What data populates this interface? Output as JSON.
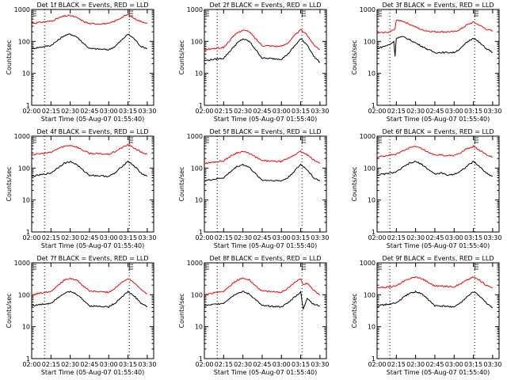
{
  "figure": {
    "xlabel": "Start Time (05-Aug-07 01:55:40)",
    "ylabel": "Counts/sec",
    "xticks": [
      "02:00",
      "02:15",
      "02:30",
      "02:45",
      "03:00",
      "03:15",
      "03:30"
    ],
    "yticks": [
      "1",
      "10",
      "100",
      "1000"
    ],
    "colors": {
      "events": "#000000",
      "lld": "#ff0000",
      "axes": "#000000",
      "background": "#ffffff"
    }
  },
  "chart_data": [
    {
      "type": "line",
      "title": "Det 1f BLACK = Events, RED = LLD",
      "panel": 1,
      "x_time_ticks": [
        "02:00",
        "02:15",
        "02:30",
        "02:45",
        "03:00",
        "03:15",
        "03:30"
      ],
      "ylog": true,
      "ylim": [
        1,
        1000
      ],
      "series": [
        {
          "role": "LLD",
          "color": "#ff0000",
          "x": [
            "02:00",
            "02:15",
            "02:20",
            "02:25",
            "02:30",
            "02:35",
            "02:40",
            "02:45",
            "03:00",
            "03:05",
            "03:10",
            "03:15",
            "03:20",
            "03:25",
            "03:30"
          ],
          "values": [
            370,
            430,
            520,
            620,
            650,
            560,
            430,
            360,
            360,
            440,
            560,
            700,
            520,
            420,
            380
          ]
        },
        {
          "role": "Events",
          "color": "#000000",
          "x": [
            "02:00",
            "02:15",
            "02:20",
            "02:25",
            "02:30",
            "02:35",
            "02:40",
            "02:45",
            "03:00",
            "03:05",
            "03:10",
            "03:15",
            "03:20",
            "03:25",
            "03:30"
          ],
          "values": [
            60,
            75,
            105,
            150,
            170,
            140,
            90,
            60,
            55,
            70,
            110,
            170,
            120,
            70,
            60
          ]
        }
      ],
      "markers": [
        "02:10",
        "03:16"
      ]
    },
    {
      "type": "line",
      "title": "Det 2f BLACK = Events, RED = LLD",
      "panel": 2,
      "x_time_ticks": [
        "02:00",
        "02:15",
        "02:30",
        "02:45",
        "03:00",
        "03:15",
        "03:30"
      ],
      "ylog": true,
      "ylim": [
        1,
        1000
      ],
      "series": [
        {
          "role": "LLD",
          "color": "#ff0000",
          "x": [
            "02:00",
            "02:15",
            "02:20",
            "02:25",
            "02:30",
            "02:35",
            "02:40",
            "02:45",
            "03:00",
            "03:05",
            "03:10",
            "03:15",
            "03:20",
            "03:25",
            "03:30"
          ],
          "values": [
            55,
            65,
            110,
            180,
            230,
            200,
            120,
            75,
            70,
            90,
            150,
            230,
            160,
            80,
            55
          ]
        },
        {
          "role": "Events",
          "color": "#000000",
          "x": [
            "02:00",
            "02:15",
            "02:20",
            "02:25",
            "02:30",
            "02:35",
            "02:40",
            "02:45",
            "03:00",
            "03:05",
            "03:10",
            "03:15",
            "03:20",
            "03:25",
            "03:30"
          ],
          "values": [
            25,
            30,
            50,
            85,
            120,
            100,
            55,
            30,
            28,
            40,
            70,
            120,
            80,
            35,
            22
          ]
        }
      ],
      "markers": [
        "02:10",
        "03:16"
      ]
    },
    {
      "type": "line",
      "title": "Det 3f BLACK = Events, RED = LLD",
      "panel": 3,
      "x_time_ticks": [
        "02:00",
        "02:15",
        "02:30",
        "02:45",
        "03:00",
        "03:15",
        "03:30"
      ],
      "ylog": true,
      "ylim": [
        1,
        1000
      ],
      "series": [
        {
          "role": "LLD",
          "color": "#ff0000",
          "x": [
            "02:00",
            "02:10",
            "02:14",
            "02:15",
            "02:20",
            "02:25",
            "02:30",
            "02:35",
            "02:40",
            "02:45",
            "03:00",
            "03:05",
            "03:10",
            "03:15",
            "03:20",
            "03:25",
            "03:30"
          ],
          "values": [
            180,
            200,
            240,
            480,
            430,
            350,
            280,
            230,
            210,
            200,
            200,
            240,
            330,
            400,
            320,
            240,
            210
          ]
        },
        {
          "role": "Events",
          "color": "#000000",
          "x": [
            "02:00",
            "02:10",
            "02:13",
            "02:14",
            "02:15",
            "02:20",
            "02:25",
            "02:30",
            "02:35",
            "02:40",
            "02:45",
            "03:00",
            "03:05",
            "03:10",
            "03:15",
            "03:20",
            "03:25",
            "03:30"
          ],
          "values": [
            60,
            80,
            100,
            35,
            130,
            140,
            115,
            90,
            70,
            55,
            45,
            45,
            60,
            95,
            130,
            90,
            60,
            45
          ]
        }
      ],
      "markers": [
        "02:10",
        "03:16"
      ]
    },
    {
      "type": "line",
      "title": "Det 4f BLACK = Events, RED = LLD",
      "panel": 4,
      "x_time_ticks": [
        "02:00",
        "02:15",
        "02:30",
        "02:45",
        "03:00",
        "03:15",
        "03:30"
      ],
      "ylog": true,
      "ylim": [
        1,
        1000
      ],
      "series": [
        {
          "role": "LLD",
          "color": "#ff0000",
          "x": [
            "02:00",
            "02:15",
            "02:20",
            "02:25",
            "02:30",
            "02:35",
            "02:40",
            "02:45",
            "03:00",
            "03:05",
            "03:10",
            "03:15",
            "03:20",
            "03:25",
            "03:30"
          ],
          "values": [
            260,
            310,
            400,
            480,
            520,
            460,
            360,
            290,
            270,
            330,
            430,
            540,
            420,
            320,
            270
          ]
        },
        {
          "role": "Events",
          "color": "#000000",
          "x": [
            "02:00",
            "02:15",
            "02:20",
            "02:25",
            "02:30",
            "02:35",
            "02:40",
            "02:45",
            "03:00",
            "03:05",
            "03:10",
            "03:15",
            "03:20",
            "03:25",
            "03:30"
          ],
          "values": [
            55,
            70,
            100,
            140,
            160,
            130,
            85,
            60,
            55,
            70,
            110,
            165,
            115,
            70,
            55
          ]
        }
      ],
      "markers": [
        "02:10",
        "03:16"
      ]
    },
    {
      "type": "line",
      "title": "Det 5f BLACK = Events, RED = LLD",
      "panel": 5,
      "x_time_ticks": [
        "02:00",
        "02:15",
        "02:30",
        "02:45",
        "03:00",
        "03:15",
        "03:30"
      ],
      "ylog": true,
      "ylim": [
        1,
        1000
      ],
      "series": [
        {
          "role": "LLD",
          "color": "#ff0000",
          "x": [
            "02:00",
            "02:15",
            "02:20",
            "02:25",
            "02:30",
            "02:35",
            "02:40",
            "02:45",
            "03:00",
            "03:05",
            "03:10",
            "03:15",
            "03:20",
            "03:25",
            "03:30"
          ],
          "values": [
            140,
            170,
            230,
            300,
            330,
            290,
            220,
            170,
            160,
            200,
            260,
            330,
            260,
            180,
            140
          ]
        },
        {
          "role": "Events",
          "color": "#000000",
          "x": [
            "02:00",
            "02:15",
            "02:20",
            "02:25",
            "02:30",
            "02:35",
            "02:40",
            "02:45",
            "03:00",
            "03:05",
            "03:10",
            "03:15",
            "03:20",
            "03:25",
            "03:30"
          ],
          "values": [
            40,
            50,
            75,
            110,
            130,
            105,
            65,
            42,
            40,
            50,
            80,
            130,
            90,
            50,
            40
          ]
        }
      ],
      "markers": [
        "02:10",
        "03:16"
      ]
    },
    {
      "type": "line",
      "title": "Det 6f BLACK = Events, RED = LLD",
      "panel": 6,
      "x_time_ticks": [
        "02:00",
        "02:15",
        "02:30",
        "02:45",
        "03:00",
        "03:15",
        "03:30"
      ],
      "ylog": true,
      "ylim": [
        1,
        1000
      ],
      "series": [
        {
          "role": "LLD",
          "color": "#ff0000",
          "x": [
            "02:00",
            "02:15",
            "02:20",
            "02:25",
            "02:30",
            "02:35",
            "02:40",
            "02:45",
            "02:50",
            "02:55",
            "03:00",
            "03:05",
            "03:10",
            "03:15",
            "03:20",
            "03:25",
            "03:30"
          ],
          "values": [
            220,
            270,
            350,
            430,
            470,
            400,
            300,
            250,
            260,
            240,
            250,
            300,
            400,
            480,
            360,
            260,
            220
          ]
        },
        {
          "role": "Events",
          "color": "#000000",
          "x": [
            "02:00",
            "02:15",
            "02:20",
            "02:25",
            "02:30",
            "02:35",
            "02:40",
            "02:45",
            "02:50",
            "02:55",
            "03:00",
            "03:05",
            "03:10",
            "03:15",
            "03:20",
            "03:25",
            "03:30"
          ],
          "values": [
            60,
            75,
            105,
            140,
            160,
            130,
            90,
            65,
            70,
            60,
            65,
            80,
            115,
            160,
            110,
            70,
            55
          ]
        }
      ],
      "markers": [
        "02:10",
        "03:16"
      ]
    },
    {
      "type": "line",
      "title": "Det 7f BLACK = Events, RED = LLD",
      "panel": 7,
      "x_time_ticks": [
        "02:00",
        "02:15",
        "02:30",
        "02:45",
        "03:00",
        "03:15",
        "03:30"
      ],
      "ylog": true,
      "ylim": [
        1,
        1000
      ],
      "series": [
        {
          "role": "LLD",
          "color": "#ff0000",
          "x": [
            "02:00",
            "02:15",
            "02:20",
            "02:25",
            "02:30",
            "02:35",
            "02:40",
            "02:45",
            "03:00",
            "03:05",
            "03:10",
            "03:15",
            "03:20",
            "03:25",
            "03:30"
          ],
          "values": [
            100,
            130,
            190,
            280,
            330,
            290,
            190,
            130,
            120,
            160,
            240,
            330,
            240,
            150,
            105
          ]
        },
        {
          "role": "Events",
          "color": "#000000",
          "x": [
            "02:00",
            "02:15",
            "02:20",
            "02:25",
            "02:30",
            "02:35",
            "02:40",
            "02:45",
            "03:00",
            "03:05",
            "03:10",
            "03:15",
            "03:20",
            "03:25",
            "03:30"
          ],
          "values": [
            45,
            55,
            80,
            110,
            125,
            105,
            70,
            45,
            42,
            55,
            85,
            125,
            90,
            55,
            42
          ]
        }
      ],
      "markers": [
        "02:10",
        "03:16"
      ]
    },
    {
      "type": "line",
      "title": "Det 8f BLACK = Events, RED = LLD",
      "panel": 8,
      "x_time_ticks": [
        "02:00",
        "02:15",
        "02:30",
        "02:45",
        "03:00",
        "03:15",
        "03:30"
      ],
      "ylog": true,
      "ylim": [
        1,
        1000
      ],
      "series": [
        {
          "role": "LLD",
          "color": "#ff0000",
          "x": [
            "02:00",
            "02:15",
            "02:20",
            "02:25",
            "02:30",
            "02:35",
            "02:40",
            "02:45",
            "03:00",
            "03:05",
            "03:10",
            "03:15",
            "03:17",
            "03:20",
            "03:25",
            "03:30"
          ],
          "values": [
            100,
            130,
            190,
            280,
            330,
            290,
            190,
            130,
            120,
            160,
            240,
            320,
            210,
            230,
            140,
            100
          ]
        },
        {
          "role": "Events",
          "color": "#000000",
          "x": [
            "02:00",
            "02:15",
            "02:20",
            "02:25",
            "02:30",
            "02:35",
            "02:40",
            "02:45",
            "03:00",
            "03:05",
            "03:10",
            "03:15",
            "03:17",
            "03:20",
            "03:25",
            "03:30"
          ],
          "values": [
            45,
            55,
            80,
            110,
            125,
            105,
            70,
            45,
            42,
            55,
            85,
            120,
            35,
            80,
            50,
            45
          ]
        }
      ],
      "markers": [
        "02:10",
        "03:16"
      ]
    },
    {
      "type": "line",
      "title": "Det 9f BLACK = Events, RED = LLD",
      "panel": 9,
      "x_time_ticks": [
        "02:00",
        "02:15",
        "02:30",
        "02:45",
        "03:00",
        "03:15",
        "03:30"
      ],
      "ylog": true,
      "ylim": [
        1,
        1000
      ],
      "series": [
        {
          "role": "LLD",
          "color": "#ff0000",
          "x": [
            "02:00",
            "02:15",
            "02:20",
            "02:25",
            "02:30",
            "02:35",
            "02:40",
            "02:45",
            "03:00",
            "03:05",
            "03:10",
            "03:15",
            "03:20",
            "03:25",
            "03:30"
          ],
          "values": [
            160,
            190,
            250,
            320,
            360,
            320,
            240,
            190,
            180,
            220,
            290,
            360,
            280,
            200,
            170
          ]
        },
        {
          "role": "Events",
          "color": "#000000",
          "x": [
            "02:00",
            "02:15",
            "02:20",
            "02:25",
            "02:30",
            "02:35",
            "02:40",
            "02:45",
            "03:00",
            "03:05",
            "03:10",
            "03:15",
            "03:20",
            "03:25",
            "03:30"
          ],
          "values": [
            45,
            55,
            80,
            110,
            125,
            105,
            70,
            45,
            42,
            55,
            85,
            125,
            90,
            55,
            40
          ]
        }
      ],
      "markers": [
        "02:10",
        "03:16"
      ]
    }
  ]
}
